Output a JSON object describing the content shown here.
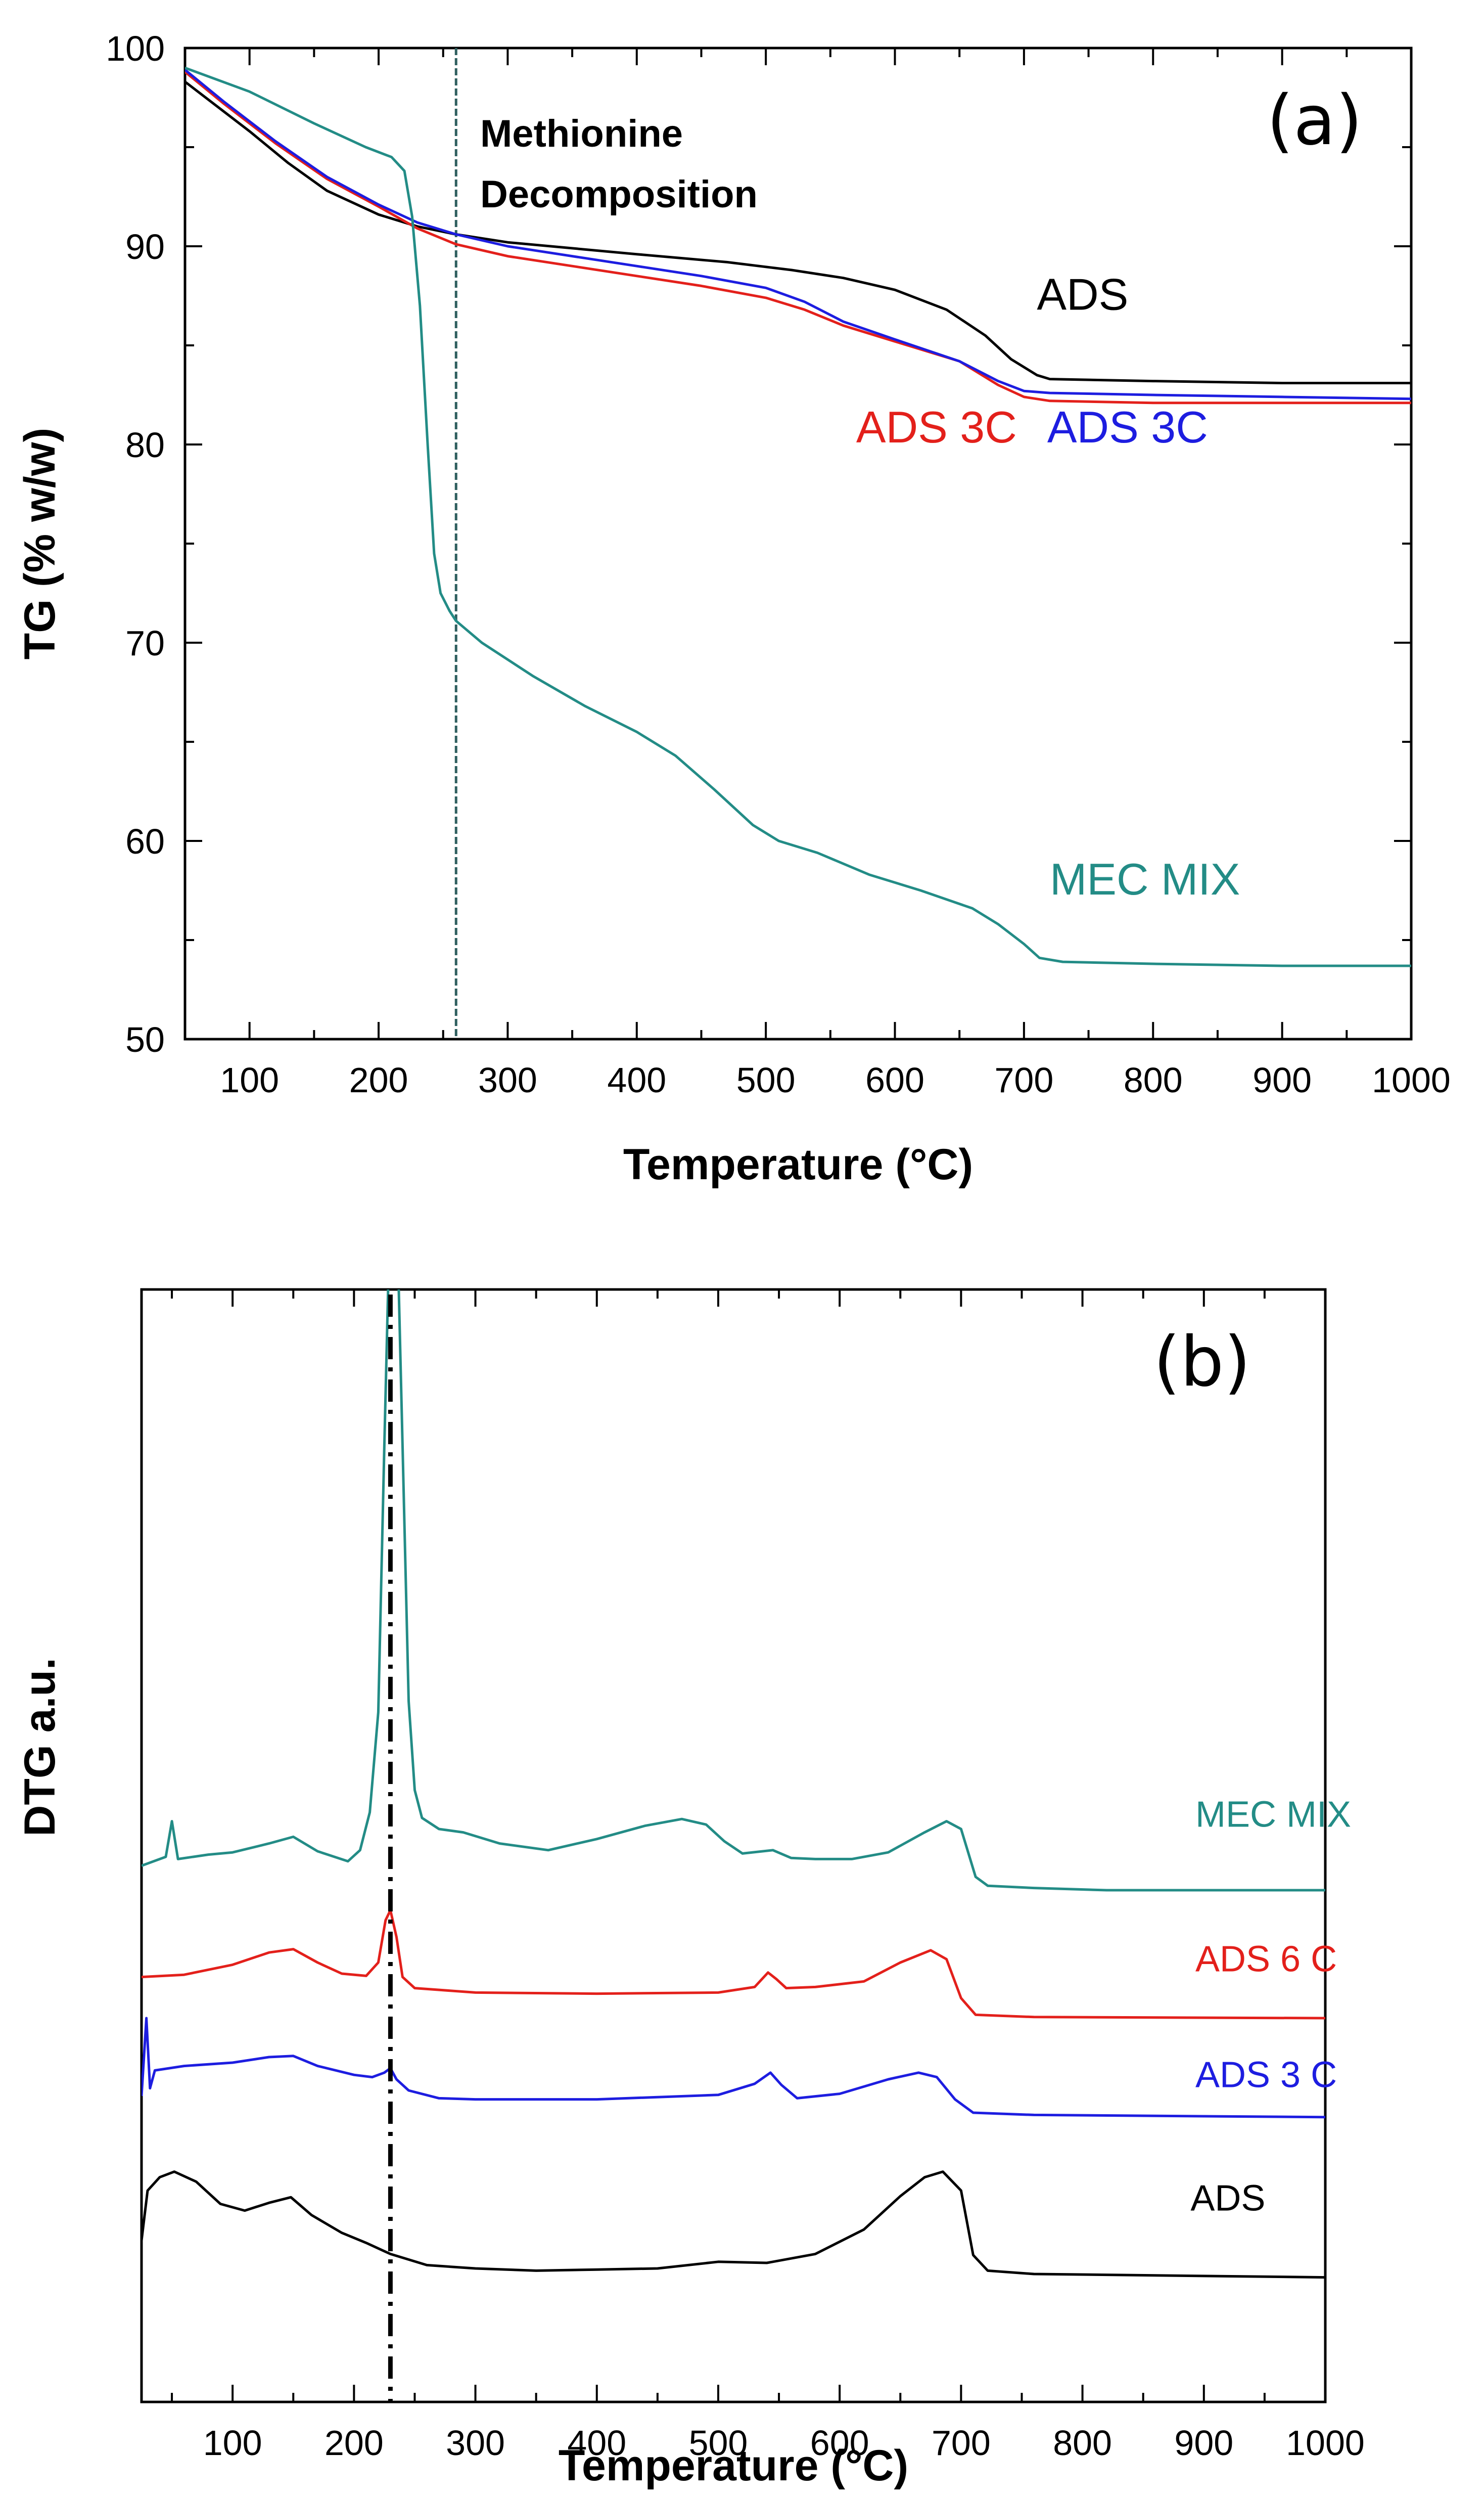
{
  "chart_data": [
    {
      "type": "line",
      "panel_label": "(a)",
      "xlabel": "Temperature (°C)",
      "ylabel": "TG (% w/w)",
      "xlim": [
        50,
        1000
      ],
      "ylim": [
        50,
        100
      ],
      "x_ticks": [
        100,
        200,
        300,
        400,
        500,
        600,
        700,
        800,
        900,
        1000
      ],
      "y_ticks": [
        50,
        60,
        70,
        80,
        90,
        100
      ],
      "annotation": {
        "lines": [
          "Methionine",
          "Decomposition"
        ],
        "x": 260,
        "color": "#2f5f5f"
      },
      "series": [
        {
          "name": "ADS",
          "color": "#000000",
          "label_at": [
            710,
            86.8
          ],
          "points": [
            [
              50,
              98.3
            ],
            [
              80,
              96.8
            ],
            [
              100,
              95.8
            ],
            [
              130,
              94.2
            ],
            [
              160,
              92.8
            ],
            [
              200,
              91.6
            ],
            [
              230,
              91.0
            ],
            [
              260,
              90.6
            ],
            [
              300,
              90.2
            ],
            [
              400,
              89.6
            ],
            [
              470,
              89.2
            ],
            [
              520,
              88.8
            ],
            [
              560,
              88.4
            ],
            [
              600,
              87.8
            ],
            [
              640,
              86.8
            ],
            [
              670,
              85.5
            ],
            [
              690,
              84.3
            ],
            [
              710,
              83.5
            ],
            [
              720,
              83.3
            ],
            [
              800,
              83.2
            ],
            [
              900,
              83.1
            ],
            [
              1000,
              83.1
            ]
          ]
        },
        {
          "name": "ADS 3C",
          "color": "#e3201b",
          "label_at": [
            570,
            80.1
          ],
          "points": [
            [
              50,
              98.8
            ],
            [
              80,
              97.2
            ],
            [
              120,
              95.2
            ],
            [
              160,
              93.4
            ],
            [
              200,
              92.0
            ],
            [
              230,
              90.9
            ],
            [
              260,
              90.1
            ],
            [
              300,
              89.5
            ],
            [
              350,
              89.0
            ],
            [
              400,
              88.5
            ],
            [
              450,
              88.0
            ],
            [
              500,
              87.4
            ],
            [
              530,
              86.8
            ],
            [
              560,
              86.0
            ],
            [
              600,
              85.2
            ],
            [
              650,
              84.2
            ],
            [
              680,
              83.0
            ],
            [
              700,
              82.4
            ],
            [
              720,
              82.2
            ],
            [
              800,
              82.1
            ],
            [
              900,
              82.1
            ],
            [
              1000,
              82.1
            ]
          ]
        },
        {
          "name": "ADS 3C",
          "color": "#1d1de0",
          "label_at": [
            718,
            80.1
          ],
          "points": [
            [
              50,
              98.9
            ],
            [
              80,
              97.3
            ],
            [
              120,
              95.3
            ],
            [
              160,
              93.5
            ],
            [
              200,
              92.1
            ],
            [
              230,
              91.2
            ],
            [
              260,
              90.6
            ],
            [
              300,
              90.0
            ],
            [
              350,
              89.5
            ],
            [
              400,
              89.0
            ],
            [
              450,
              88.5
            ],
            [
              500,
              87.9
            ],
            [
              530,
              87.2
            ],
            [
              560,
              86.2
            ],
            [
              600,
              85.3
            ],
            [
              650,
              84.2
            ],
            [
              680,
              83.2
            ],
            [
              700,
              82.7
            ],
            [
              720,
              82.6
            ],
            [
              800,
              82.5
            ],
            [
              900,
              82.4
            ],
            [
              1000,
              82.3
            ]
          ]
        },
        {
          "name": "MEC MIX",
          "color": "#238c86",
          "label_at": [
            720,
            57.3
          ],
          "points": [
            [
              50,
              99.0
            ],
            [
              100,
              97.8
            ],
            [
              150,
              96.2
            ],
            [
              190,
              95.0
            ],
            [
              210,
              94.5
            ],
            [
              220,
              93.8
            ],
            [
              226,
              91.5
            ],
            [
              232,
              87.0
            ],
            [
              238,
              80.0
            ],
            [
              243,
              74.5
            ],
            [
              248,
              72.5
            ],
            [
              255,
              71.6
            ],
            [
              260,
              71.1
            ],
            [
              280,
              70.0
            ],
            [
              320,
              68.3
            ],
            [
              360,
              66.8
            ],
            [
              400,
              65.5
            ],
            [
              430,
              64.3
            ],
            [
              460,
              62.6
            ],
            [
              490,
              60.8
            ],
            [
              510,
              60.0
            ],
            [
              540,
              59.4
            ],
            [
              580,
              58.3
            ],
            [
              620,
              57.5
            ],
            [
              660,
              56.6
            ],
            [
              680,
              55.8
            ],
            [
              700,
              54.8
            ],
            [
              712,
              54.1
            ],
            [
              730,
              53.9
            ],
            [
              800,
              53.8
            ],
            [
              900,
              53.7
            ],
            [
              1000,
              53.7
            ]
          ]
        }
      ]
    },
    {
      "type": "line",
      "panel_label": "(b)",
      "xlabel": "Temperature (°C)",
      "ylabel": "DTG a.u.",
      "xlim": [
        25,
        1000
      ],
      "ylim": [
        0,
        10
      ],
      "x_ticks": [
        100,
        200,
        300,
        400,
        500,
        600,
        700,
        800,
        900,
        1000
      ],
      "y_ticks": [],
      "annotation": {
        "x": 230,
        "color": "#000000"
      },
      "series": [
        {
          "name": "MEC MIX",
          "color": "#238c86",
          "label_at": [
            893,
            5.17
          ],
          "points": [
            [
              25,
              4.82
            ],
            [
              45,
              4.9
            ],
            [
              50,
              5.22
            ],
            [
              55,
              4.88
            ],
            [
              80,
              4.92
            ],
            [
              100,
              4.94
            ],
            [
              130,
              5.02
            ],
            [
              150,
              5.08
            ],
            [
              170,
              4.95
            ],
            [
              195,
              4.86
            ],
            [
              205,
              4.96
            ],
            [
              213,
              5.3
            ],
            [
              220,
              6.2
            ],
            [
              225,
              8.6
            ],
            [
              229,
              10.4
            ],
            [
              236,
              10.4
            ],
            [
              240,
              8.6
            ],
            [
              245,
              6.3
            ],
            [
              250,
              5.5
            ],
            [
              256,
              5.25
            ],
            [
              270,
              5.15
            ],
            [
              290,
              5.12
            ],
            [
              320,
              5.02
            ],
            [
              360,
              4.96
            ],
            [
              400,
              5.06
            ],
            [
              440,
              5.18
            ],
            [
              470,
              5.24
            ],
            [
              490,
              5.19
            ],
            [
              505,
              5.04
            ],
            [
              520,
              4.93
            ],
            [
              545,
              4.96
            ],
            [
              560,
              4.89
            ],
            [
              580,
              4.88
            ],
            [
              610,
              4.88
            ],
            [
              640,
              4.94
            ],
            [
              670,
              5.12
            ],
            [
              688,
              5.22
            ],
            [
              700,
              5.15
            ],
            [
              712,
              4.72
            ],
            [
              722,
              4.64
            ],
            [
              760,
              4.62
            ],
            [
              820,
              4.6
            ],
            [
              900,
              4.6
            ],
            [
              1000,
              4.6
            ]
          ]
        },
        {
          "name": "ADS 6 C",
          "color": "#e3201b",
          "label_at": [
            893,
            3.87
          ],
          "points": [
            [
              25,
              3.82
            ],
            [
              60,
              3.84
            ],
            [
              100,
              3.93
            ],
            [
              130,
              4.04
            ],
            [
              150,
              4.07
            ],
            [
              170,
              3.95
            ],
            [
              190,
              3.85
            ],
            [
              210,
              3.83
            ],
            [
              220,
              3.95
            ],
            [
              226,
              4.33
            ],
            [
              230,
              4.42
            ],
            [
              235,
              4.18
            ],
            [
              240,
              3.82
            ],
            [
              250,
              3.72
            ],
            [
              300,
              3.68
            ],
            [
              400,
              3.67
            ],
            [
              500,
              3.68
            ],
            [
              530,
              3.73
            ],
            [
              541,
              3.86
            ],
            [
              548,
              3.8
            ],
            [
              556,
              3.72
            ],
            [
              580,
              3.73
            ],
            [
              620,
              3.78
            ],
            [
              650,
              3.95
            ],
            [
              675,
              4.06
            ],
            [
              688,
              3.98
            ],
            [
              700,
              3.63
            ],
            [
              712,
              3.48
            ],
            [
              760,
              3.46
            ],
            [
              1000,
              3.45
            ]
          ]
        },
        {
          "name": "ADS 3 C",
          "color": "#1d1de0",
          "label_at": [
            893,
            2.83
          ],
          "points": [
            [
              25,
              2.75
            ],
            [
              29,
              3.45
            ],
            [
              32,
              2.82
            ],
            [
              36,
              2.98
            ],
            [
              60,
              3.02
            ],
            [
              100,
              3.05
            ],
            [
              130,
              3.1
            ],
            [
              150,
              3.11
            ],
            [
              170,
              3.02
            ],
            [
              200,
              2.94
            ],
            [
              215,
              2.92
            ],
            [
              225,
              2.96
            ],
            [
              230,
              3.0
            ],
            [
              235,
              2.9
            ],
            [
              245,
              2.8
            ],
            [
              270,
              2.73
            ],
            [
              300,
              2.72
            ],
            [
              400,
              2.72
            ],
            [
              500,
              2.76
            ],
            [
              530,
              2.86
            ],
            [
              543,
              2.96
            ],
            [
              552,
              2.85
            ],
            [
              565,
              2.73
            ],
            [
              600,
              2.77
            ],
            [
              640,
              2.9
            ],
            [
              665,
              2.96
            ],
            [
              680,
              2.92
            ],
            [
              695,
              2.72
            ],
            [
              710,
              2.6
            ],
            [
              760,
              2.58
            ],
            [
              1000,
              2.56
            ]
          ]
        },
        {
          "name": "ADS",
          "color": "#000000",
          "label_at": [
            889,
            1.72
          ],
          "points": [
            [
              25,
              1.45
            ],
            [
              30,
              1.9
            ],
            [
              40,
              2.02
            ],
            [
              52,
              2.07
            ],
            [
              70,
              1.98
            ],
            [
              90,
              1.78
            ],
            [
              110,
              1.72
            ],
            [
              130,
              1.79
            ],
            [
              148,
              1.84
            ],
            [
              165,
              1.68
            ],
            [
              190,
              1.52
            ],
            [
              210,
              1.43
            ],
            [
              230,
              1.33
            ],
            [
              260,
              1.23
            ],
            [
              300,
              1.2
            ],
            [
              350,
              1.18
            ],
            [
              400,
              1.19
            ],
            [
              450,
              1.2
            ],
            [
              500,
              1.26
            ],
            [
              540,
              1.25
            ],
            [
              580,
              1.33
            ],
            [
              620,
              1.55
            ],
            [
              650,
              1.85
            ],
            [
              670,
              2.02
            ],
            [
              685,
              2.07
            ],
            [
              700,
              1.9
            ],
            [
              710,
              1.32
            ],
            [
              722,
              1.18
            ],
            [
              760,
              1.15
            ],
            [
              1000,
              1.12
            ]
          ]
        }
      ]
    }
  ]
}
